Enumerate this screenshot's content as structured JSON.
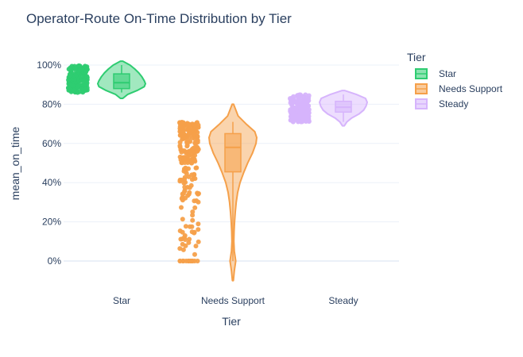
{
  "chart_data": {
    "type": "violin",
    "title": "Operator-Route On-Time Distribution by Tier",
    "xlabel": "Tier",
    "ylabel": "mean_on_time",
    "categories": [
      "Star",
      "Needs Support",
      "Steady"
    ],
    "y_ticks": [
      0,
      0.2,
      0.4,
      0.6,
      0.8,
      1.0
    ],
    "y_tick_labels": [
      "0%",
      "20%",
      "40%",
      "60%",
      "80%",
      "100%"
    ],
    "ylim": [
      -0.1,
      1.08
    ],
    "grid": true,
    "points": "all",
    "box_visible": true,
    "legend": {
      "title": "Tier",
      "placement": "right",
      "entries": [
        "Star",
        "Needs Support",
        "Steady"
      ]
    },
    "series": [
      {
        "name": "Star",
        "color": "#2ecc71",
        "points_range": [
          0.86,
          1.0
        ],
        "violin_range": [
          0.83,
          1.02
        ],
        "box": {
          "q1": 0.88,
          "median": 0.91,
          "q3": 0.955,
          "whisker_low": 0.86,
          "whisker_high": 1.0
        },
        "density": [
          [
            0.83,
            0.05
          ],
          [
            0.85,
            0.25
          ],
          [
            0.87,
            0.65
          ],
          [
            0.89,
            0.95
          ],
          [
            0.905,
            1.0
          ],
          [
            0.92,
            0.95
          ],
          [
            0.94,
            0.85
          ],
          [
            0.96,
            0.72
          ],
          [
            0.98,
            0.55
          ],
          [
            1.0,
            0.35
          ],
          [
            1.02,
            0.05
          ]
        ]
      },
      {
        "name": "Needs Support",
        "color": "#f5a04a",
        "points_range": [
          0.0,
          0.71
        ],
        "violin_range": [
          -0.1,
          0.8
        ],
        "box": {
          "q1": 0.455,
          "median": 0.58,
          "q3": 0.65,
          "whisker_low": 0.0,
          "whisker_high": 0.71
        },
        "density": [
          [
            -0.1,
            0.02
          ],
          [
            -0.05,
            0.06
          ],
          [
            0.0,
            0.12
          ],
          [
            0.05,
            0.06
          ],
          [
            0.1,
            0.04
          ],
          [
            0.15,
            0.05
          ],
          [
            0.2,
            0.07
          ],
          [
            0.25,
            0.1
          ],
          [
            0.3,
            0.14
          ],
          [
            0.35,
            0.2
          ],
          [
            0.4,
            0.3
          ],
          [
            0.45,
            0.45
          ],
          [
            0.5,
            0.62
          ],
          [
            0.55,
            0.82
          ],
          [
            0.6,
            0.97
          ],
          [
            0.63,
            1.0
          ],
          [
            0.66,
            0.92
          ],
          [
            0.7,
            0.55
          ],
          [
            0.74,
            0.22
          ],
          [
            0.8,
            0.03
          ]
        ]
      },
      {
        "name": "Steady",
        "color": "#d6b4fc",
        "points_range": [
          0.71,
          0.85
        ],
        "violin_range": [
          0.69,
          0.87
        ],
        "box": {
          "q1": 0.76,
          "median": 0.785,
          "q3": 0.815,
          "whisker_low": 0.71,
          "whisker_high": 0.85
        },
        "density": [
          [
            0.69,
            0.04
          ],
          [
            0.71,
            0.15
          ],
          [
            0.73,
            0.35
          ],
          [
            0.75,
            0.65
          ],
          [
            0.77,
            0.85
          ],
          [
            0.79,
            0.95
          ],
          [
            0.81,
            1.0
          ],
          [
            0.83,
            0.93
          ],
          [
            0.85,
            0.55
          ],
          [
            0.87,
            0.05
          ]
        ]
      }
    ]
  }
}
